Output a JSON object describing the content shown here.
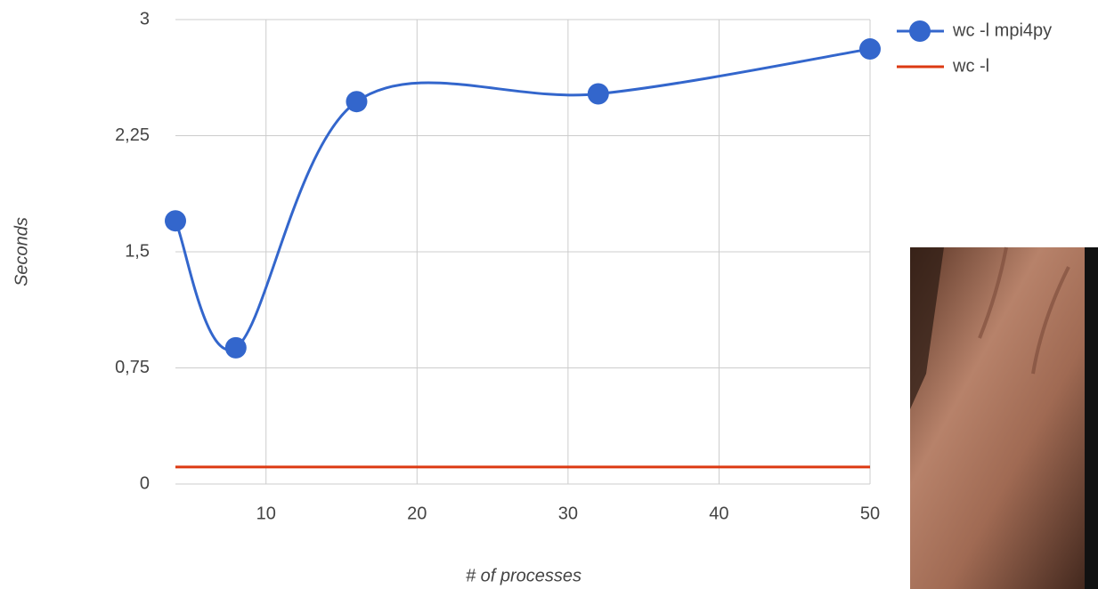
{
  "chart_data": {
    "type": "line",
    "x_label": "# of processes",
    "y_label": "Seconds",
    "x": [
      4,
      8,
      16,
      32,
      50
    ],
    "series": [
      {
        "name": "wc -l mpi4py",
        "color": "#3366cc",
        "values": [
          1.7,
          0.88,
          2.47,
          2.52,
          2.81
        ],
        "markers": true,
        "smooth": true
      },
      {
        "name": "wc -l",
        "color": "#dc3912",
        "values": [
          0.11,
          0.11,
          0.11,
          0.11,
          0.11
        ],
        "markers": false,
        "smooth": false
      }
    ],
    "xlim": [
      4,
      50
    ],
    "xticks": [
      10,
      20,
      30,
      40,
      50
    ],
    "ylim": [
      0,
      3
    ],
    "yticks": [
      0,
      {
        "value": 0.75,
        "label": "0,75"
      },
      {
        "value": 1.5,
        "label": "1,5"
      },
      {
        "value": 2.25,
        "label": "2,25"
      },
      3
    ],
    "grid": true,
    "legend": "right"
  }
}
